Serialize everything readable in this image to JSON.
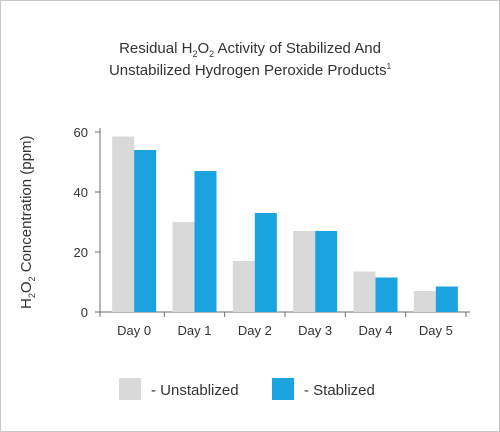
{
  "colors": {
    "unstabilized": "#d9d9d9",
    "stabilized": "#1aa3df",
    "axis": "#6e6e6e",
    "text": "#333333"
  },
  "chart_data": {
    "type": "bar",
    "title_parts": {
      "line1_pre": "Residual H",
      "line1_sub1": "2",
      "line1_mid": "O",
      "line1_sub2": "2",
      "line1_post": " Activity of Stabilized And",
      "line2": "Unstabilized Hydrogen Peroxide Products",
      "line2_sup": "1"
    },
    "ylabel_parts": {
      "pre": "H",
      "sub1": "2",
      "mid": "O",
      "sub2": "2",
      "post": " Concentration (ppm)"
    },
    "categories": [
      "Day 0",
      "Day 1",
      "Day 2",
      "Day 3",
      "Day 4",
      "Day 5"
    ],
    "series": [
      {
        "name": "Unstablized",
        "legend_label": "- Unstablized",
        "values": [
          58.5,
          30,
          17,
          27,
          13.5,
          7
        ]
      },
      {
        "name": "Stablized",
        "legend_label": "- Stablized",
        "values": [
          54,
          47,
          33,
          27,
          11.5,
          8.5
        ]
      }
    ],
    "yticks": [
      0,
      20,
      40,
      60
    ],
    "ylim": [
      0,
      60
    ],
    "grid": false,
    "legend_position": "bottom"
  }
}
